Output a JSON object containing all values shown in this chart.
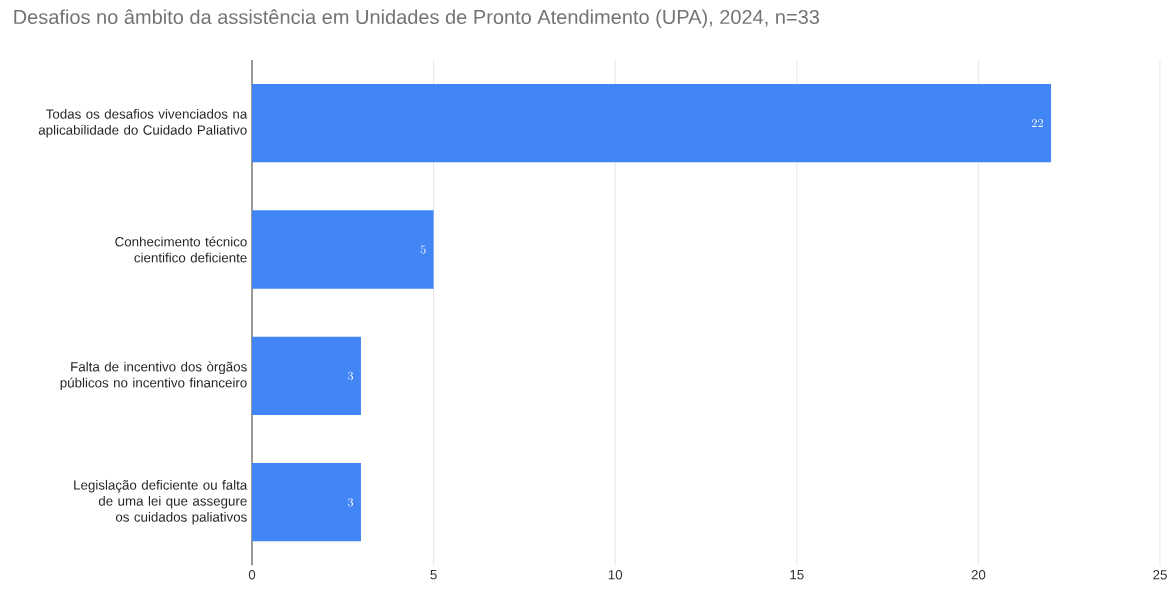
{
  "chart_data": {
    "type": "bar",
    "orientation": "horizontal",
    "title": "Desafios no âmbito da assistência em Unidades de Pronto Atendimento (UPA), 2024, n=33",
    "categories": [
      "Todas os desafios vivenciados na aplicabilidade do Cuidado Paliativo",
      "Conhecimento técnico cientifico deficiente",
      "Falta de incentivo dos òrgãos públicos no incentivo financeiro",
      "Legislação deficiente ou falta de uma lei que assegure os cuidados paliativos"
    ],
    "values": [
      22,
      5,
      3,
      3
    ],
    "color": "#4285f4",
    "xlim": [
      0,
      25
    ],
    "xticks": [
      0,
      5,
      10,
      15,
      20,
      25
    ],
    "grid": "x",
    "data_labels": true
  }
}
